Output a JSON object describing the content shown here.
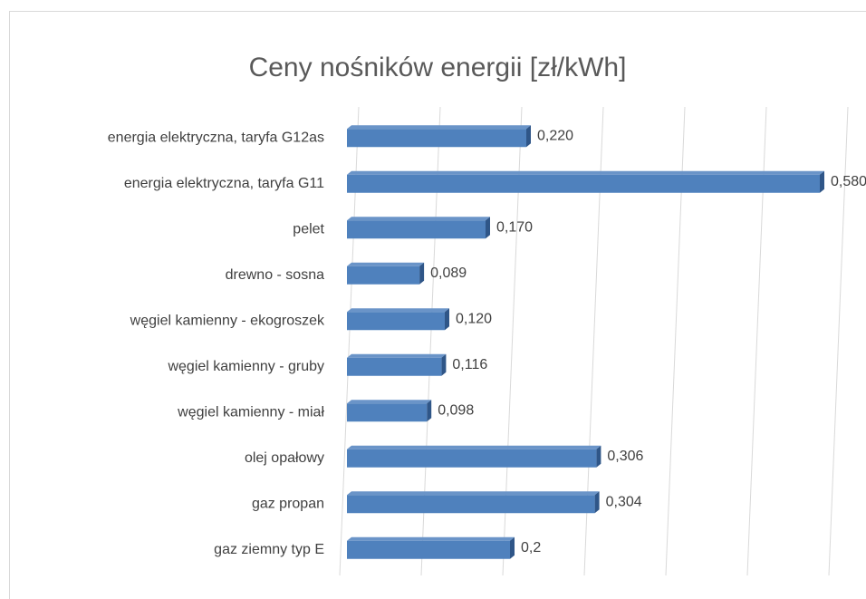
{
  "chart_data": {
    "type": "bar",
    "orientation": "horizontal",
    "title": "Ceny nośników energii [zł/kWh]",
    "categories": [
      "energia elektryczna, taryfa G12as",
      "energia elektryczna, taryfa G11",
      "pelet",
      "drewno - sosna",
      "węgiel kamienny - ekogroszek",
      "węgiel kamienny - gruby",
      "węgiel kamienny - miał",
      "olej opałowy",
      "gaz propan",
      "gaz ziemny typ E"
    ],
    "values": [
      0.22,
      0.58,
      0.17,
      0.089,
      0.12,
      0.116,
      0.098,
      0.306,
      0.304,
      0.2
    ],
    "value_labels": [
      "0,220",
      "0,580",
      "0,170",
      "0,089",
      "0,120",
      "0,116",
      "0,098",
      "0,306",
      "0,304",
      "0,2"
    ],
    "color": "#4f81bd",
    "xlim": [
      0,
      0.6
    ],
    "xticks": [
      0,
      0.1,
      0.2,
      0.3,
      0.4,
      0.5,
      0.6
    ],
    "grid": true
  }
}
